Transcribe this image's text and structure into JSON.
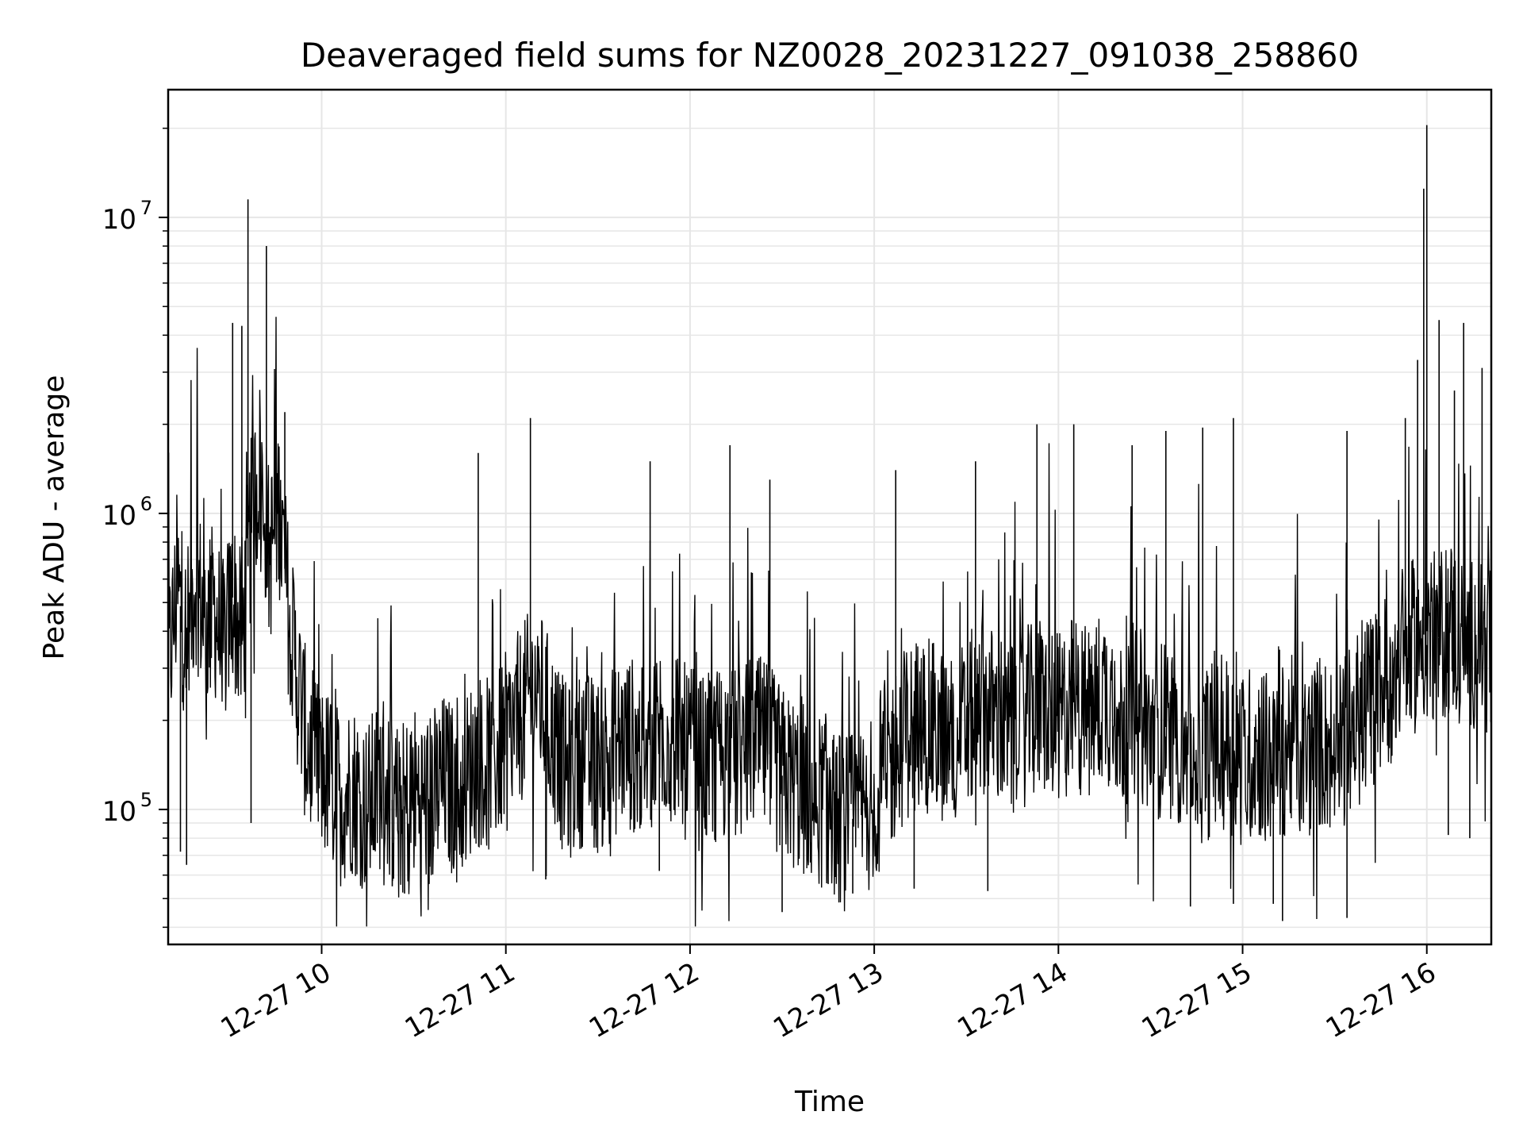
{
  "chart_data": {
    "type": "line",
    "title": "Deaveraged field sums for NZ0028_20231227_091038_258860",
    "xlabel": "Time",
    "ylabel": "Peak ADU - average",
    "y_scale": "log",
    "ylim": [
      35000,
      27000000
    ],
    "x_range": [
      "2023-12-27 09:10",
      "2023-12-27 16:21"
    ],
    "grid": true,
    "line_color": "#000000",
    "grid_color": "#e6e6e6",
    "x_ticks": [
      {
        "time": "2023-12-27 10:00",
        "label": "12-27 10"
      },
      {
        "time": "2023-12-27 11:00",
        "label": "12-27 11"
      },
      {
        "time": "2023-12-27 12:00",
        "label": "12-27 12"
      },
      {
        "time": "2023-12-27 13:00",
        "label": "12-27 13"
      },
      {
        "time": "2023-12-27 14:00",
        "label": "12-27 14"
      },
      {
        "time": "2023-12-27 15:00",
        "label": "12-27 15"
      },
      {
        "time": "2023-12-27 16:00",
        "label": "12-27 16"
      }
    ],
    "y_ticks": [
      {
        "value": 100000,
        "base": "10",
        "exp": "5"
      },
      {
        "value": 1000000,
        "base": "10",
        "exp": "6"
      },
      {
        "value": 10000000,
        "base": "10",
        "exp": "7"
      }
    ],
    "series": [
      {
        "points": [
          [
            "2023-12-27 09:10",
            300000
          ],
          [
            "2023-12-27 09:13",
            550000
          ],
          [
            "2023-12-27 09:16",
            380000
          ],
          [
            "2023-12-27 09:19",
            620000
          ],
          [
            "2023-12-27 09:22",
            420000
          ],
          [
            "2023-12-27 09:25",
            480000
          ],
          [
            "2023-12-27 09:28",
            350000
          ],
          [
            "2023-12-27 09:31",
            520000
          ],
          [
            "2023-12-27 09:34",
            360000
          ],
          [
            "2023-12-27 09:37",
            900000
          ],
          [
            "2023-12-27 09:40",
            1500000
          ],
          [
            "2023-12-27 09:43",
            700000
          ],
          [
            "2023-12-27 09:46",
            1100000
          ],
          [
            "2023-12-27 09:49",
            500000
          ],
          [
            "2023-12-27 09:52",
            280000
          ],
          [
            "2023-12-27 09:55",
            170000
          ],
          [
            "2023-12-27 09:58",
            140000
          ],
          [
            "2023-12-27 10:02",
            130000
          ],
          [
            "2023-12-27 10:06",
            110000
          ],
          [
            "2023-12-27 10:10",
            120000
          ],
          [
            "2023-12-27 10:15",
            100000
          ],
          [
            "2023-12-27 10:20",
            130000
          ],
          [
            "2023-12-27 10:25",
            95000
          ],
          [
            "2023-12-27 10:30",
            115000
          ],
          [
            "2023-12-27 10:35",
            105000
          ],
          [
            "2023-12-27 10:40",
            125000
          ],
          [
            "2023-12-27 10:45",
            110000
          ],
          [
            "2023-12-27 10:50",
            150000
          ],
          [
            "2023-12-27 10:55",
            140000
          ],
          [
            "2023-12-27 11:00",
            170000
          ],
          [
            "2023-12-27 11:05",
            210000
          ],
          [
            "2023-12-27 11:10",
            260000
          ],
          [
            "2023-12-27 11:15",
            180000
          ],
          [
            "2023-12-27 11:20",
            130000
          ],
          [
            "2023-12-27 11:25",
            150000
          ],
          [
            "2023-12-27 11:30",
            140000
          ],
          [
            "2023-12-27 11:35",
            160000
          ],
          [
            "2023-12-27 11:40",
            170000
          ],
          [
            "2023-12-27 11:45",
            150000
          ],
          [
            "2023-12-27 11:50",
            190000
          ],
          [
            "2023-12-27 11:55",
            170000
          ],
          [
            "2023-12-27 12:00",
            150000
          ],
          [
            "2023-12-27 12:05",
            140000
          ],
          [
            "2023-12-27 12:10",
            160000
          ],
          [
            "2023-12-27 12:15",
            150000
          ],
          [
            "2023-12-27 12:20",
            170000
          ],
          [
            "2023-12-27 12:25",
            160000
          ],
          [
            "2023-12-27 12:30",
            130000
          ],
          [
            "2023-12-27 12:35",
            120000
          ],
          [
            "2023-12-27 12:40",
            110000
          ],
          [
            "2023-12-27 12:45",
            105000
          ],
          [
            "2023-12-27 12:50",
            90000
          ],
          [
            "2023-12-27 12:55",
            95000
          ],
          [
            "2023-12-27 13:00",
            110000
          ],
          [
            "2023-12-27 13:05",
            140000
          ],
          [
            "2023-12-27 13:10",
            180000
          ],
          [
            "2023-12-27 13:15",
            200000
          ],
          [
            "2023-12-27 13:20",
            180000
          ],
          [
            "2023-12-27 13:25",
            170000
          ],
          [
            "2023-12-27 13:30",
            190000
          ],
          [
            "2023-12-27 13:35",
            230000
          ],
          [
            "2023-12-27 13:40",
            200000
          ],
          [
            "2023-12-27 13:45",
            180000
          ],
          [
            "2023-12-27 13:50",
            210000
          ],
          [
            "2023-12-27 13:55",
            220000
          ],
          [
            "2023-12-27 14:00",
            200000
          ],
          [
            "2023-12-27 14:05",
            230000
          ],
          [
            "2023-12-27 14:10",
            210000
          ],
          [
            "2023-12-27 14:15",
            250000
          ],
          [
            "2023-12-27 14:20",
            200000
          ],
          [
            "2023-12-27 14:25",
            220000
          ],
          [
            "2023-12-27 14:30",
            180000
          ],
          [
            "2023-12-27 14:35",
            190000
          ],
          [
            "2023-12-27 14:40",
            170000
          ],
          [
            "2023-12-27 14:45",
            150000
          ],
          [
            "2023-12-27 14:50",
            160000
          ],
          [
            "2023-12-27 14:55",
            170000
          ],
          [
            "2023-12-27 15:00",
            150000
          ],
          [
            "2023-12-27 15:05",
            160000
          ],
          [
            "2023-12-27 15:10",
            140000
          ],
          [
            "2023-12-27 15:15",
            170000
          ],
          [
            "2023-12-27 15:20",
            150000
          ],
          [
            "2023-12-27 15:25",
            170000
          ],
          [
            "2023-12-27 15:30",
            160000
          ],
          [
            "2023-12-27 15:35",
            180000
          ],
          [
            "2023-12-27 15:40",
            220000
          ],
          [
            "2023-12-27 15:45",
            260000
          ],
          [
            "2023-12-27 15:50",
            300000
          ],
          [
            "2023-12-27 15:55",
            350000
          ],
          [
            "2023-12-27 16:00",
            400000
          ],
          [
            "2023-12-27 16:04",
            380000
          ],
          [
            "2023-12-27 16:08",
            420000
          ],
          [
            "2023-12-27 16:12",
            350000
          ],
          [
            "2023-12-27 16:16",
            380000
          ],
          [
            "2023-12-27 16:21",
            330000
          ]
        ]
      }
    ],
    "peaks": [
      [
        "2023-12-27 09:36",
        11500000
      ],
      [
        "2023-12-27 09:42",
        8000000
      ],
      [
        "2023-12-27 09:34",
        4300000
      ],
      [
        "2023-12-27 09:31",
        4400000
      ],
      [
        "2023-12-27 09:48",
        2200000
      ],
      [
        "2023-12-27 10:51",
        1600000
      ],
      [
        "2023-12-27 11:08",
        2100000
      ],
      [
        "2023-12-27 11:47",
        1500000
      ],
      [
        "2023-12-27 12:13",
        1700000
      ],
      [
        "2023-12-27 12:26",
        1300000
      ],
      [
        "2023-12-27 13:07",
        1400000
      ],
      [
        "2023-12-27 13:33",
        1500000
      ],
      [
        "2023-12-27 13:53",
        2000000
      ],
      [
        "2023-12-27 14:05",
        2000000
      ],
      [
        "2023-12-27 14:24",
        1700000
      ],
      [
        "2023-12-27 14:35",
        1900000
      ],
      [
        "2023-12-27 14:47",
        1950000
      ],
      [
        "2023-12-27 14:57",
        2100000
      ],
      [
        "2023-12-27 15:34",
        1900000
      ],
      [
        "2023-12-27 15:53",
        2100000
      ],
      [
        "2023-12-27 16:00",
        20500000
      ],
      [
        "2023-12-27 15:59",
        12500000
      ],
      [
        "2023-12-27 16:04",
        4500000
      ],
      [
        "2023-12-27 15:57",
        3300000
      ],
      [
        "2023-12-27 16:12",
        4400000
      ],
      [
        "2023-12-27 16:18",
        3100000
      ],
      [
        "2023-12-27 16:09",
        2600000
      ]
    ],
    "dips": [
      [
        "2023-12-27 09:37",
        90000
      ],
      [
        "2023-12-27 09:14",
        72000
      ],
      [
        "2023-12-27 09:16",
        65000
      ],
      [
        "2023-12-27 10:23",
        55000
      ],
      [
        "2023-12-27 10:27",
        52000
      ],
      [
        "2023-12-27 10:35",
        56000
      ],
      [
        "2023-12-27 11:13",
        58000
      ],
      [
        "2023-12-27 11:50",
        62000
      ],
      [
        "2023-12-27 12:30",
        45000
      ],
      [
        "2023-12-27 12:45",
        56000
      ],
      [
        "2023-12-27 12:53",
        52000
      ],
      [
        "2023-12-27 13:13",
        54000
      ],
      [
        "2023-12-27 13:37",
        53000
      ],
      [
        "2023-12-27 14:43",
        47000
      ],
      [
        "2023-12-27 14:57",
        48000
      ],
      [
        "2023-12-27 15:10",
        48000
      ],
      [
        "2023-12-27 15:13",
        42000
      ],
      [
        "2023-12-27 15:34",
        43000
      ],
      [
        "2023-12-27 16:07",
        82000
      ],
      [
        "2023-12-27 16:14",
        80000
      ]
    ]
  }
}
